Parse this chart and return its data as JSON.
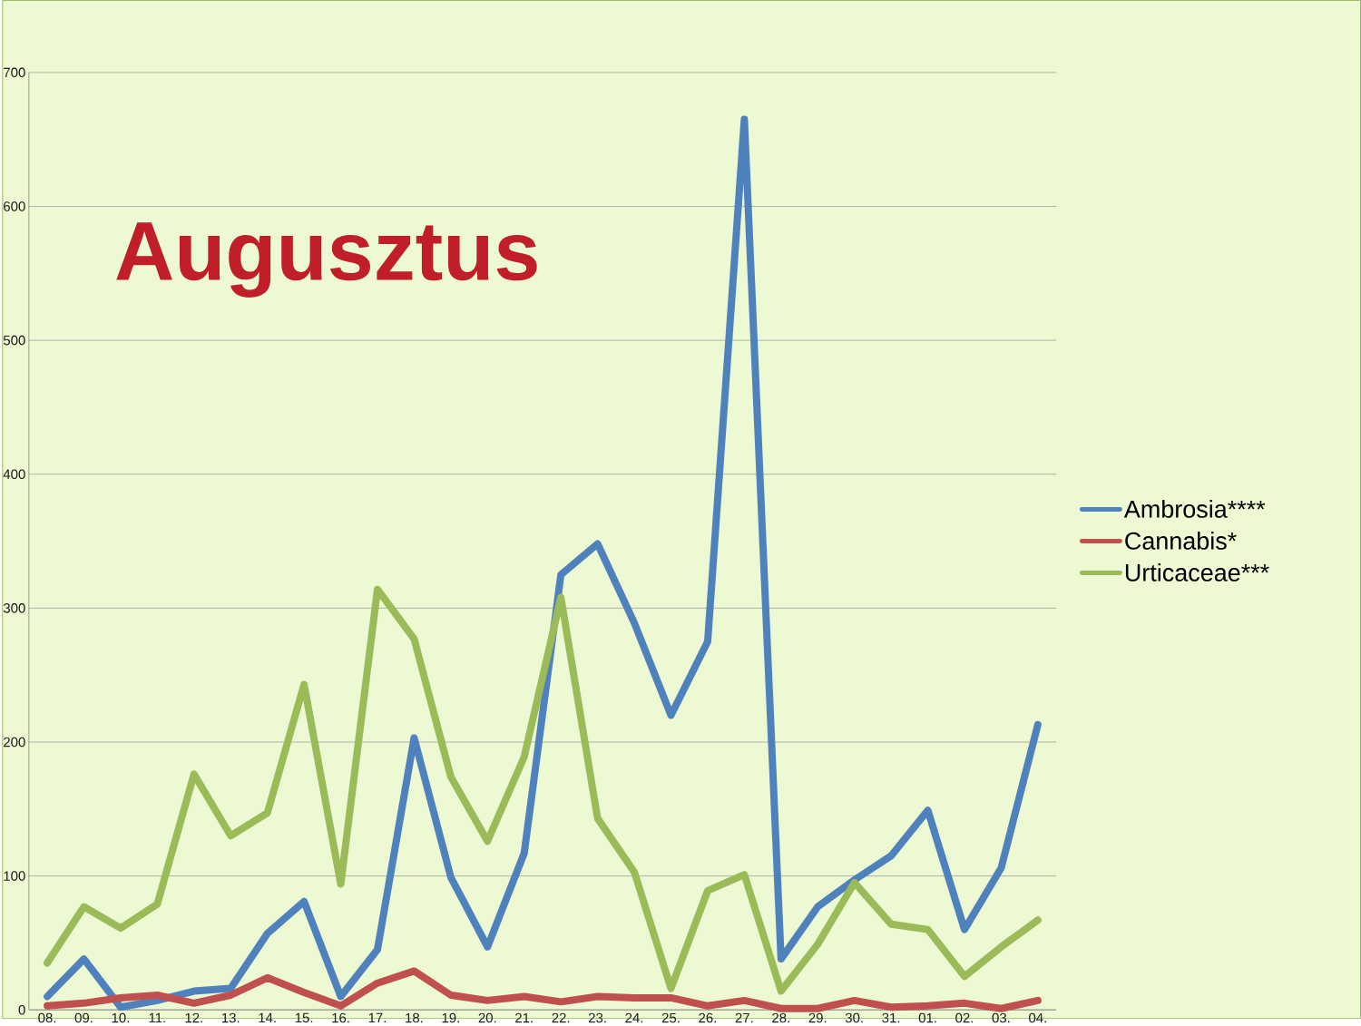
{
  "chart_data": {
    "type": "line",
    "title": "Augusztus",
    "categories": [
      "08.",
      "09.",
      "10.",
      "11.",
      "12.",
      "13.",
      "14.",
      "15.",
      "16.",
      "17.",
      "18.",
      "19.",
      "20.",
      "21.",
      "22.",
      "23.",
      "24.",
      "25.",
      "26.",
      "27.",
      "28.",
      "29.",
      "30.",
      "31.",
      "01.",
      "02.",
      "03.",
      "04."
    ],
    "series": [
      {
        "name": "Ambrosia****",
        "color": "#4f81bd",
        "values": [
          10,
          38,
          2,
          7,
          14,
          16,
          57,
          81,
          10,
          45,
          203,
          99,
          47,
          117,
          325,
          348,
          289,
          220,
          275,
          665,
          38,
          77,
          97,
          115,
          149,
          60,
          106,
          213
        ]
      },
      {
        "name": "Cannabis*",
        "color": "#c0504d",
        "values": [
          3,
          5,
          9,
          11,
          5,
          11,
          24,
          13,
          3,
          20,
          29,
          11,
          7,
          10,
          6,
          10,
          9,
          9,
          3,
          7,
          1,
          1,
          7,
          2,
          3,
          5,
          1,
          7
        ]
      },
      {
        "name": "Urticaceae***",
        "color": "#9bbb59",
        "values": [
          35,
          77,
          61,
          79,
          176,
          130,
          147,
          243,
          94,
          314,
          277,
          174,
          126,
          189,
          308,
          143,
          103,
          16,
          89,
          101,
          14,
          49,
          95,
          64,
          60,
          25,
          47,
          67
        ]
      }
    ],
    "ylim": [
      0,
      700
    ],
    "yticks": [
      0,
      100,
      200,
      300,
      400,
      500,
      600,
      700
    ],
    "grid": "y",
    "legend": "right",
    "marker": "none",
    "line_style": "solid"
  }
}
